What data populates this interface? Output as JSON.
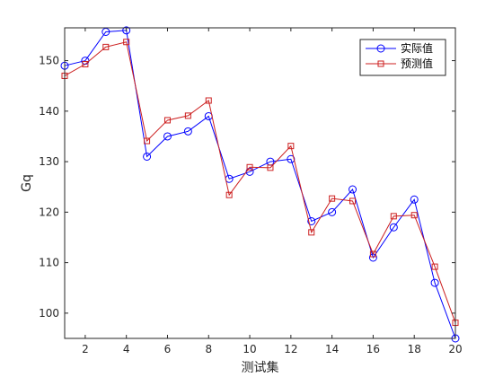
{
  "chart_data": {
    "type": "line",
    "title": "",
    "xlabel": "测试集",
    "ylabel": "Gq",
    "xlim": [
      1,
      20
    ],
    "ylim": [
      95,
      156.5
    ],
    "x_ticks": [
      2,
      4,
      6,
      8,
      10,
      12,
      14,
      16,
      18,
      20
    ],
    "y_ticks": [
      100,
      110,
      120,
      130,
      140,
      150
    ],
    "grid": false,
    "legend_position": "top-right",
    "x": [
      1,
      2,
      3,
      4,
      5,
      6,
      7,
      8,
      9,
      10,
      11,
      12,
      13,
      14,
      15,
      16,
      17,
      18,
      19,
      20
    ],
    "series": [
      {
        "name": "实际值",
        "color": "#0000ff",
        "marker": "circle",
        "values": [
          149,
          150,
          155.7,
          156,
          131,
          135,
          136,
          139,
          126.6,
          128,
          130,
          130.5,
          118.2,
          120,
          124.5,
          111,
          117,
          122.5,
          106,
          95
        ]
      },
      {
        "name": "预测值",
        "color": "#cc1f1f",
        "marker": "square",
        "values": [
          147,
          149.3,
          152.7,
          153.7,
          134.1,
          138.2,
          139.1,
          142.1,
          123.4,
          128.9,
          128.8,
          133.1,
          116,
          122.7,
          122.2,
          111.7,
          119.2,
          119.4,
          109.2,
          98.1
        ]
      }
    ]
  }
}
